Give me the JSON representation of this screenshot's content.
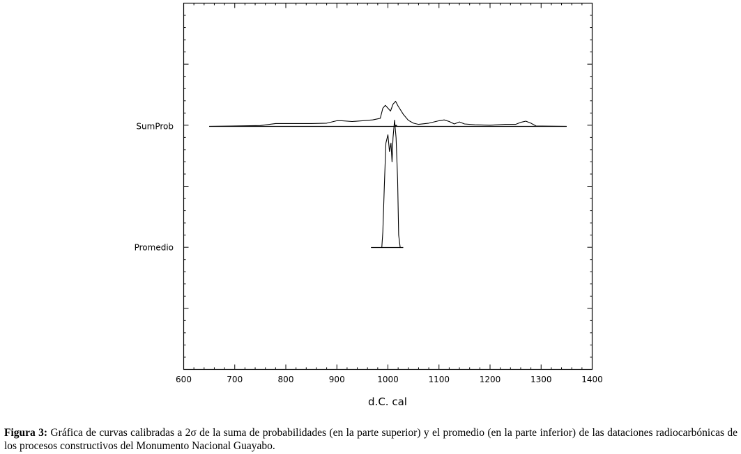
{
  "chart_data": {
    "type": "area",
    "xlabel": "d.C. cal",
    "x_ticks": [
      600,
      700,
      800,
      900,
      1000,
      1100,
      1200,
      1300,
      1400
    ],
    "xlim": [
      600,
      1400
    ],
    "series": [
      {
        "name": "SumProb",
        "x": [
          650,
          700,
          750,
          780,
          800,
          850,
          880,
          900,
          910,
          930,
          950,
          970,
          985,
          990,
          995,
          1000,
          1005,
          1010,
          1015,
          1020,
          1030,
          1040,
          1050,
          1060,
          1080,
          1100,
          1110,
          1120,
          1130,
          1140,
          1150,
          1170,
          1200,
          1230,
          1250,
          1260,
          1270,
          1280,
          1290,
          1350
        ],
        "y": [
          0,
          0.01,
          0.02,
          0.07,
          0.07,
          0.07,
          0.08,
          0.14,
          0.14,
          0.12,
          0.14,
          0.16,
          0.2,
          0.45,
          0.52,
          0.45,
          0.38,
          0.55,
          0.62,
          0.5,
          0.3,
          0.15,
          0.08,
          0.05,
          0.08,
          0.14,
          0.16,
          0.12,
          0.06,
          0.11,
          0.06,
          0.04,
          0.03,
          0.05,
          0.05,
          0.1,
          0.13,
          0.08,
          0.01,
          0
        ]
      },
      {
        "name": "Promedio",
        "x": [
          967,
          988,
          990,
          993,
          996,
          1000,
          1003,
          1006,
          1008,
          1010,
          1013,
          1016,
          1019,
          1021,
          1024,
          1030
        ],
        "y": [
          0,
          0,
          0.15,
          0.6,
          1.0,
          1.08,
          0.92,
          1.0,
          0.82,
          1.05,
          1.22,
          1.05,
          0.65,
          0.12,
          0,
          0
        ]
      }
    ],
    "marker_x": 1016
  },
  "caption": {
    "label": "Figura 3:",
    "text": " Gráfica de curvas calibradas a 2σ de la suma de probabilidades (en la parte superior) y el promedio (en la parte inferior) de las dataciones radiocarbónicas de los procesos constructivos del Monumento Nacional Guayabo."
  }
}
